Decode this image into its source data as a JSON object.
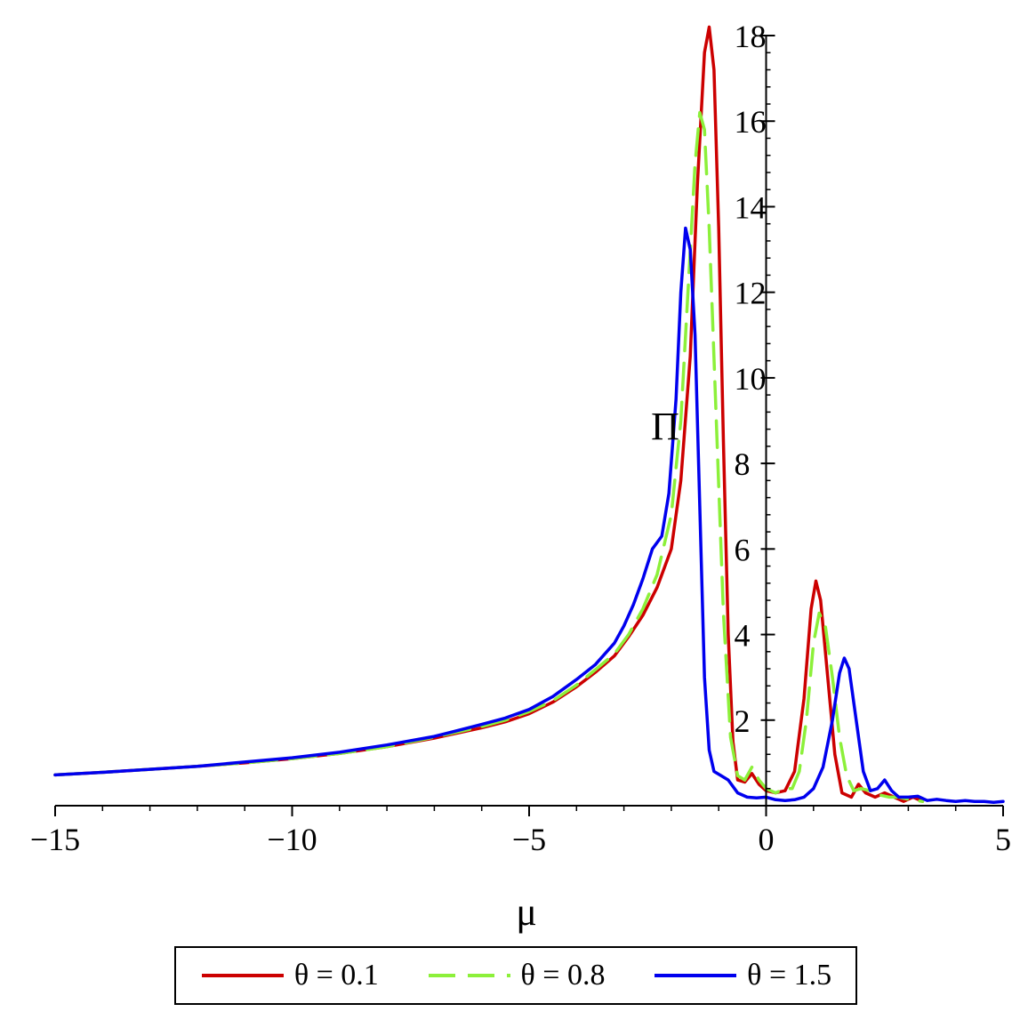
{
  "chart_data": {
    "type": "line",
    "title": "",
    "xlabel": "μ",
    "ylabel": "Π",
    "xlim": [
      -15,
      5
    ],
    "ylim": [
      0,
      18
    ],
    "x_ticks": [
      {
        "value": -15,
        "label": "−15"
      },
      {
        "value": -10,
        "label": "−10"
      },
      {
        "value": -5,
        "label": "−5"
      },
      {
        "value": 0,
        "label": "0"
      },
      {
        "value": 5,
        "label": "5"
      }
    ],
    "y_ticks": [
      {
        "value": 2,
        "label": "2"
      },
      {
        "value": 4,
        "label": "4"
      },
      {
        "value": 6,
        "label": "6"
      },
      {
        "value": 8,
        "label": "8"
      },
      {
        "value": 10,
        "label": "10"
      },
      {
        "value": 12,
        "label": "12"
      },
      {
        "value": 14,
        "label": "14"
      },
      {
        "value": 16,
        "label": "16"
      },
      {
        "value": 18,
        "label": "18"
      }
    ],
    "legend_position": "bottom",
    "series": [
      {
        "name": "θ = 0.1",
        "color": "#cc0000",
        "dash": "solid",
        "points": [
          [
            -15,
            0.72
          ],
          [
            -14,
            0.78
          ],
          [
            -13,
            0.85
          ],
          [
            -12,
            0.92
          ],
          [
            -11,
            1.0
          ],
          [
            -10,
            1.1
          ],
          [
            -9,
            1.22
          ],
          [
            -8,
            1.38
          ],
          [
            -7,
            1.58
          ],
          [
            -6,
            1.82
          ],
          [
            -5.5,
            1.96
          ],
          [
            -5,
            2.15
          ],
          [
            -4.5,
            2.42
          ],
          [
            -4,
            2.78
          ],
          [
            -3.6,
            3.12
          ],
          [
            -3.2,
            3.5
          ],
          [
            -2.9,
            3.95
          ],
          [
            -2.6,
            4.45
          ],
          [
            -2.3,
            5.1
          ],
          [
            -2.0,
            6.0
          ],
          [
            -1.8,
            7.6
          ],
          [
            -1.6,
            10.5
          ],
          [
            -1.45,
            14.5
          ],
          [
            -1.3,
            17.6
          ],
          [
            -1.2,
            18.2
          ],
          [
            -1.1,
            17.2
          ],
          [
            -1.0,
            13.5
          ],
          [
            -0.9,
            8.5
          ],
          [
            -0.8,
            4.0
          ],
          [
            -0.7,
            1.5
          ],
          [
            -0.6,
            0.6
          ],
          [
            -0.45,
            0.55
          ],
          [
            -0.3,
            0.75
          ],
          [
            -0.15,
            0.5
          ],
          [
            0.0,
            0.35
          ],
          [
            0.2,
            0.3
          ],
          [
            0.4,
            0.35
          ],
          [
            0.6,
            0.8
          ],
          [
            0.8,
            2.5
          ],
          [
            0.95,
            4.6
          ],
          [
            1.05,
            5.25
          ],
          [
            1.15,
            4.8
          ],
          [
            1.3,
            3.0
          ],
          [
            1.45,
            1.2
          ],
          [
            1.6,
            0.3
          ],
          [
            1.8,
            0.2
          ],
          [
            1.95,
            0.5
          ],
          [
            2.1,
            0.3
          ],
          [
            2.3,
            0.2
          ],
          [
            2.5,
            0.3
          ],
          [
            2.7,
            0.2
          ],
          [
            2.9,
            0.1
          ],
          [
            3.1,
            0.2
          ],
          [
            3.3,
            0.1
          ]
        ]
      },
      {
        "name": "θ = 0.8",
        "color": "#8cf03a",
        "dash": "dashed",
        "points": [
          [
            -15,
            0.72
          ],
          [
            -14,
            0.78
          ],
          [
            -13,
            0.85
          ],
          [
            -12,
            0.92
          ],
          [
            -11,
            1.0
          ],
          [
            -10,
            1.1
          ],
          [
            -9,
            1.22
          ],
          [
            -8,
            1.38
          ],
          [
            -7,
            1.6
          ],
          [
            -6,
            1.85
          ],
          [
            -5.5,
            2.0
          ],
          [
            -5,
            2.2
          ],
          [
            -4.5,
            2.45
          ],
          [
            -4,
            2.82
          ],
          [
            -3.6,
            3.18
          ],
          [
            -3.2,
            3.55
          ],
          [
            -2.9,
            4.0
          ],
          [
            -2.6,
            4.6
          ],
          [
            -2.3,
            5.4
          ],
          [
            -2.0,
            6.8
          ],
          [
            -1.8,
            9.0
          ],
          [
            -1.65,
            12.0
          ],
          [
            -1.5,
            15.0
          ],
          [
            -1.4,
            16.2
          ],
          [
            -1.3,
            15.8
          ],
          [
            -1.2,
            13.5
          ],
          [
            -1.05,
            9.0
          ],
          [
            -0.9,
            4.5
          ],
          [
            -0.75,
            1.6
          ],
          [
            -0.6,
            0.7
          ],
          [
            -0.45,
            0.6
          ],
          [
            -0.3,
            0.9
          ],
          [
            -0.15,
            0.6
          ],
          [
            0.0,
            0.4
          ],
          [
            0.2,
            0.3
          ],
          [
            0.4,
            0.4
          ],
          [
            0.55,
            0.4
          ],
          [
            0.7,
            0.8
          ],
          [
            0.85,
            2.0
          ],
          [
            1.0,
            3.8
          ],
          [
            1.12,
            4.5
          ],
          [
            1.25,
            4.2
          ],
          [
            1.4,
            3.0
          ],
          [
            1.55,
            1.6
          ],
          [
            1.7,
            0.7
          ],
          [
            1.85,
            0.35
          ],
          [
            2.0,
            0.4
          ],
          [
            2.2,
            0.35
          ],
          [
            2.4,
            0.25
          ],
          [
            2.6,
            0.2
          ],
          [
            2.8,
            0.2
          ],
          [
            3.0,
            0.15
          ],
          [
            3.3,
            0.1
          ]
        ]
      },
      {
        "name": "θ = 1.5",
        "color": "#0000ee",
        "dash": "solid",
        "points": [
          [
            -15,
            0.72
          ],
          [
            -14,
            0.78
          ],
          [
            -13,
            0.85
          ],
          [
            -12,
            0.92
          ],
          [
            -11,
            1.02
          ],
          [
            -10,
            1.12
          ],
          [
            -9,
            1.25
          ],
          [
            -8,
            1.42
          ],
          [
            -7,
            1.62
          ],
          [
            -6,
            1.9
          ],
          [
            -5.5,
            2.05
          ],
          [
            -5,
            2.25
          ],
          [
            -4.5,
            2.55
          ],
          [
            -4,
            2.95
          ],
          [
            -3.6,
            3.3
          ],
          [
            -3.2,
            3.8
          ],
          [
            -3.0,
            4.2
          ],
          [
            -2.8,
            4.7
          ],
          [
            -2.6,
            5.3
          ],
          [
            -2.4,
            6.0
          ],
          [
            -2.2,
            6.3
          ],
          [
            -2.05,
            7.3
          ],
          [
            -1.9,
            9.5
          ],
          [
            -1.8,
            12.0
          ],
          [
            -1.7,
            13.5
          ],
          [
            -1.6,
            13.0
          ],
          [
            -1.5,
            11.0
          ],
          [
            -1.4,
            7.0
          ],
          [
            -1.3,
            3.0
          ],
          [
            -1.2,
            1.3
          ],
          [
            -1.1,
            0.8
          ],
          [
            -0.95,
            0.7
          ],
          [
            -0.8,
            0.6
          ],
          [
            -0.6,
            0.3
          ],
          [
            -0.4,
            0.2
          ],
          [
            -0.2,
            0.18
          ],
          [
            0.0,
            0.2
          ],
          [
            0.2,
            0.14
          ],
          [
            0.4,
            0.12
          ],
          [
            0.6,
            0.14
          ],
          [
            0.8,
            0.2
          ],
          [
            1.0,
            0.4
          ],
          [
            1.2,
            0.9
          ],
          [
            1.4,
            2.0
          ],
          [
            1.55,
            3.1
          ],
          [
            1.65,
            3.45
          ],
          [
            1.75,
            3.2
          ],
          [
            1.9,
            2.0
          ],
          [
            2.05,
            0.8
          ],
          [
            2.2,
            0.35
          ],
          [
            2.35,
            0.4
          ],
          [
            2.5,
            0.6
          ],
          [
            2.65,
            0.35
          ],
          [
            2.8,
            0.2
          ],
          [
            3.0,
            0.2
          ],
          [
            3.2,
            0.22
          ],
          [
            3.4,
            0.12
          ],
          [
            3.6,
            0.15
          ],
          [
            3.8,
            0.12
          ],
          [
            4.0,
            0.1
          ],
          [
            4.2,
            0.12
          ],
          [
            4.4,
            0.1
          ],
          [
            4.6,
            0.1
          ],
          [
            4.8,
            0.08
          ],
          [
            5.0,
            0.1
          ]
        ]
      }
    ]
  }
}
